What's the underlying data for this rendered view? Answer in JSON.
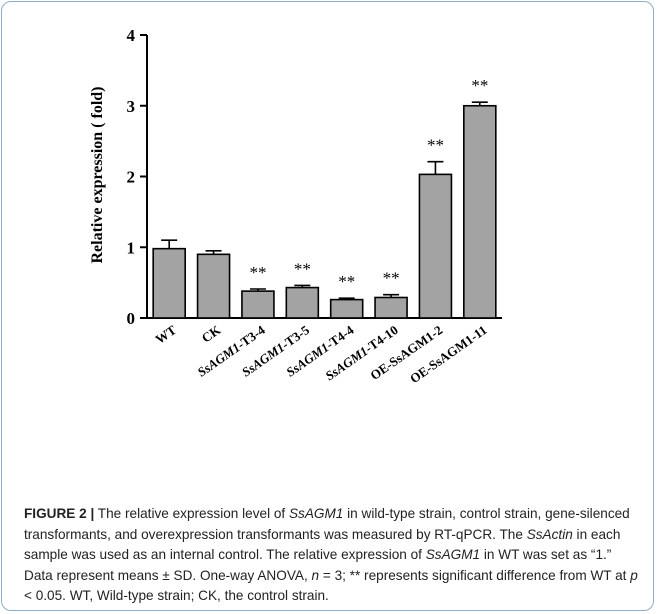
{
  "chart_data": {
    "type": "bar",
    "title": "",
    "xlabel": "",
    "ylabel": "Relative expression ( fold)",
    "ylim": [
      0,
      4
    ],
    "yticks": [
      "0",
      "1",
      "2",
      "3",
      "4"
    ],
    "categories": [
      "WT",
      "CK",
      "SsAGM1-T3-4",
      "SsAGM1-T3-5",
      "SsAGM1-T4-4",
      "SsAGM1-T4-10",
      "OE-SsAGM1-2",
      "OE-SsAGM1-11"
    ],
    "values": [
      0.98,
      0.9,
      0.38,
      0.43,
      0.26,
      0.29,
      2.03,
      3.0
    ],
    "errors": [
      0.12,
      0.05,
      0.03,
      0.03,
      0.02,
      0.04,
      0.18,
      0.05
    ],
    "annotations": [
      "",
      "",
      "**",
      "**",
      "**",
      "**",
      "**",
      "**"
    ],
    "bar_color": "#a3a3a3"
  },
  "caption": {
    "figure_label": "FIGURE 2 |",
    "s1": " The relative expression level of ",
    "g1": "SsAGM1",
    "s2": " in wild-type strain, control strain, gene-silenced transformants, and overexpression transformants was measured by RT-qPCR. The ",
    "g2": "SsActin",
    "s3": " in each sample was used as an internal control. The relative expression of ",
    "g3": "SsAGM1",
    "s4": " in WT was set as “1.” Data represent means ± SD. One-way ANOVA, ",
    "n": "n",
    "s5": " = 3; ** represents significant difference from WT at ",
    "p": "p",
    "s6": " < 0.05. WT, Wild-type strain; CK, the control strain."
  }
}
